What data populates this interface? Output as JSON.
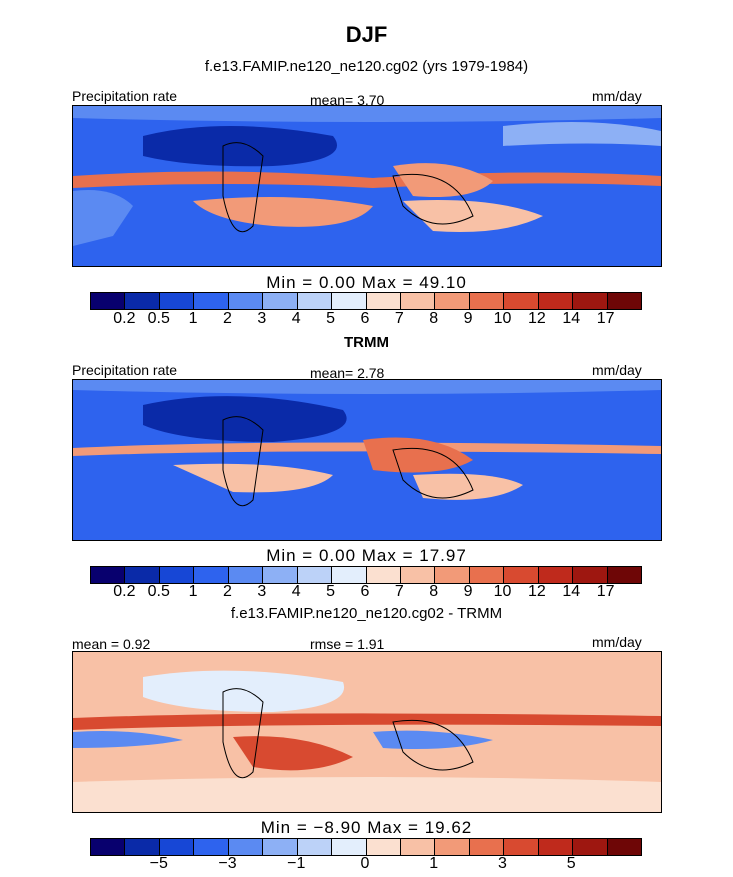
{
  "title": "DJF",
  "panels": [
    {
      "heading": "f.e13.FAMIP.ne120_ne120.cg02 (yrs 1979-1984)",
      "left_label": "Precipitation rate",
      "center_label": "mean=   3.70",
      "right_label": "mm/day",
      "stats": "Min =    0.00 Max =   49.10",
      "colorbar_ticks": [
        "0.2",
        "0.5",
        "1",
        "2",
        "3",
        "4",
        "5",
        "6",
        "7",
        "8",
        "9",
        "10",
        "12",
        "14",
        "17"
      ]
    },
    {
      "heading": "TRMM",
      "left_label": "Precipitation rate",
      "center_label": "mean=   2.78",
      "right_label": "mm/day",
      "stats": "Min =    0.00 Max =   17.97",
      "colorbar_ticks": [
        "0.2",
        "0.5",
        "1",
        "2",
        "3",
        "4",
        "5",
        "6",
        "7",
        "8",
        "9",
        "10",
        "12",
        "14",
        "17"
      ]
    },
    {
      "heading": "f.e13.FAMIP.ne120_ne120.cg02 - TRMM",
      "left_label": "mean =   0.92",
      "center_label": "rmse =   1.91",
      "right_label": "mm/day",
      "stats": "Min =   −8.90 Max =   19.62",
      "colorbar_ticks": [
        "−5",
        "−3",
        "−1",
        "0",
        "1",
        "3",
        "5"
      ]
    }
  ],
  "colors": {
    "palette": [
      "#08006e",
      "#0a2aa8",
      "#1747d6",
      "#2e63ee",
      "#5b8af2",
      "#8db0f5",
      "#bcd2f8",
      "#e3eefc",
      "#fbe0d0",
      "#f8c1a6",
      "#f29a78",
      "#e8704e",
      "#d84a30",
      "#bf2a1c",
      "#9e1710",
      "#6e0606"
    ]
  }
}
